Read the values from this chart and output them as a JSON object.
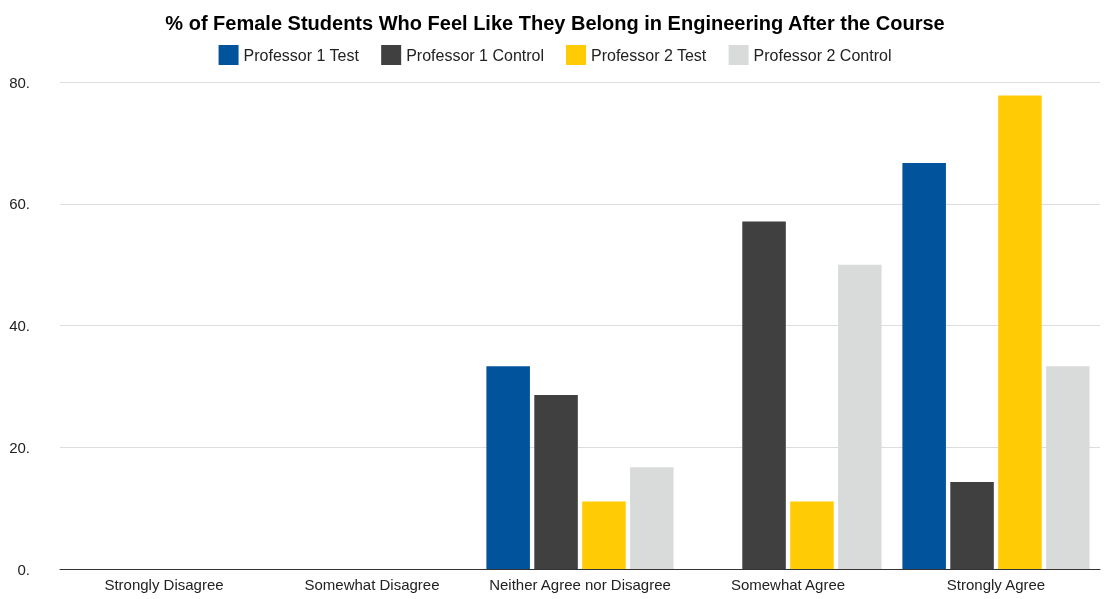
{
  "chart_data": {
    "type": "bar",
    "title": "% of Female Students Who Feel Like They Belong in Engineering After the Course",
    "categories": [
      "Strongly Disagree",
      "Somewhat Disagree",
      "Neither Agree nor Disagree",
      "Somewhat Agree",
      "Strongly Agree"
    ],
    "series": [
      {
        "name": "Professor 1 Test",
        "color": "#01539b",
        "values": [
          0,
          0,
          33.3,
          0,
          66.7
        ]
      },
      {
        "name": "Professor 1 Control",
        "color": "#404041",
        "values": [
          0,
          0,
          28.6,
          57.1,
          14.3
        ]
      },
      {
        "name": "Professor 2 Test",
        "color": "#ffcb05",
        "values": [
          0,
          0,
          11.1,
          11.1,
          77.8
        ]
      },
      {
        "name": "Professor 2 Control",
        "color": "#d9dada",
        "values": [
          0,
          0,
          16.7,
          50,
          33.3
        ]
      }
    ],
    "ylim": [
      0,
      80
    ],
    "yticks": [
      {
        "value": 0,
        "label": "0."
      },
      {
        "value": 20,
        "label": "20."
      },
      {
        "value": 40,
        "label": "40."
      },
      {
        "value": 60,
        "label": "60."
      },
      {
        "value": 80,
        "label": "80."
      }
    ],
    "grid": "y",
    "legend": "top"
  }
}
